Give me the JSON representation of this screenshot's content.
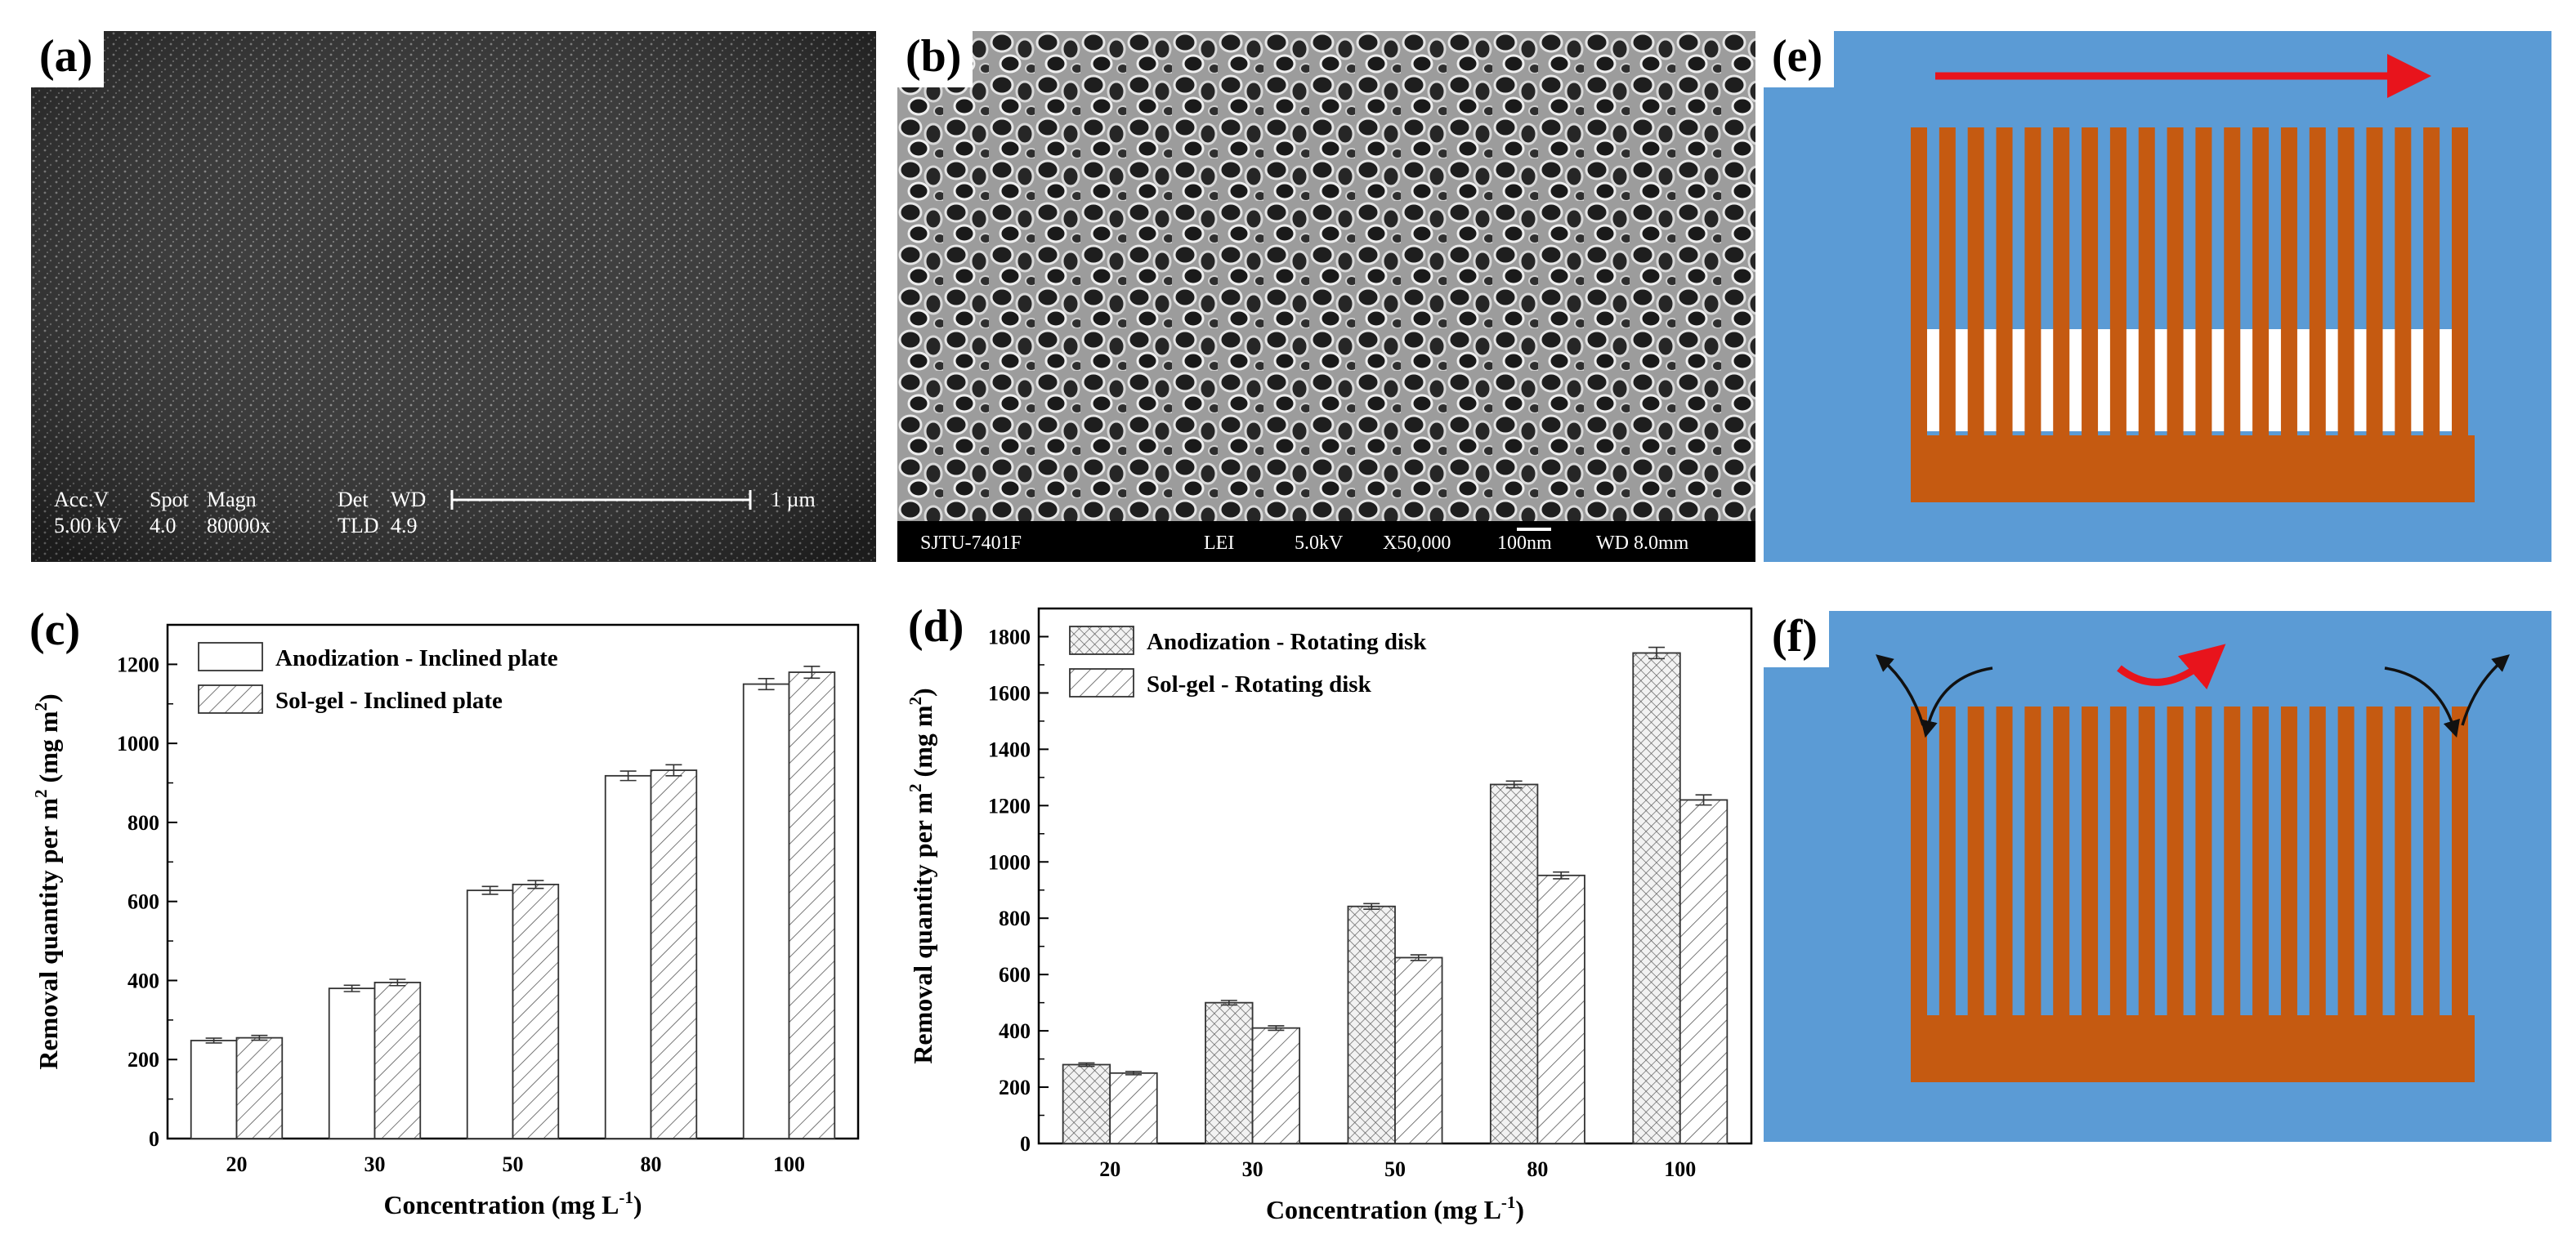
{
  "panels": {
    "a": {
      "label": "(a)",
      "meta": {
        "line1": [
          "Acc.V",
          "Spot",
          "Magn",
          "Det",
          "WD"
        ],
        "line2": [
          "5.00 kV",
          "4.0",
          "80000x",
          "TLD",
          "4.9"
        ],
        "scalebar": "1 µm"
      }
    },
    "b": {
      "label": "(b)",
      "footer": [
        "SJTU-7401F",
        "LEI",
        "5.0kV",
        "X50,000",
        "100nm",
        "WD 8.0mm"
      ]
    },
    "c": {
      "label": "(c)"
    },
    "d": {
      "label": "(d)"
    },
    "e": {
      "label": "(e)"
    },
    "f": {
      "label": "(f)"
    }
  },
  "colors": {
    "water": "#5b9bd5",
    "fins": "#c55a11",
    "arrow_red": "#e8141c",
    "arrow_black": "#111111"
  },
  "chart_data": [
    {
      "id": "c",
      "type": "bar",
      "categories": [
        "20",
        "30",
        "50",
        "80",
        "100"
      ],
      "series": [
        {
          "name": "Anodization - Inclined plate",
          "pattern": "plain",
          "values": [
            248,
            380,
            628,
            918,
            1150
          ],
          "errors": [
            6,
            8,
            10,
            12,
            14
          ]
        },
        {
          "name": "Sol-gel - Inclined plate",
          "pattern": "hatch",
          "values": [
            255,
            395,
            643,
            932,
            1180
          ],
          "errors": [
            6,
            8,
            10,
            14,
            15
          ]
        }
      ],
      "xlabel": "Concentration (mg L",
      "xlabel_sup": "-1",
      "xlabel_end": ")",
      "ylabel_parts": [
        "Removal quantity per m",
        "2",
        " (mg m",
        "2",
        ")"
      ],
      "ylim": [
        0,
        1300
      ],
      "yticks": [
        0,
        200,
        400,
        600,
        800,
        1000,
        1200
      ],
      "legend": "top-left"
    },
    {
      "id": "d",
      "type": "bar",
      "categories": [
        "20",
        "30",
        "50",
        "80",
        "100"
      ],
      "series": [
        {
          "name": "Anodization - Rotating disk",
          "pattern": "crosshatch",
          "values": [
            280,
            500,
            842,
            1275,
            1742
          ],
          "errors": [
            6,
            8,
            10,
            12,
            20
          ]
        },
        {
          "name": "Sol-gel - Rotating disk",
          "pattern": "hatch",
          "values": [
            250,
            410,
            660,
            952,
            1220
          ],
          "errors": [
            6,
            8,
            10,
            12,
            18
          ]
        }
      ],
      "xlabel": "Concentration (mg L",
      "xlabel_sup": "-1",
      "xlabel_end": ")",
      "ylabel_parts": [
        "Removal quantity per m",
        "2",
        " (mg m",
        "2",
        ")"
      ],
      "ylim": [
        0,
        1900
      ],
      "yticks": [
        0,
        200,
        400,
        600,
        800,
        1000,
        1200,
        1400,
        1600,
        1800
      ],
      "legend": "top-left"
    }
  ]
}
